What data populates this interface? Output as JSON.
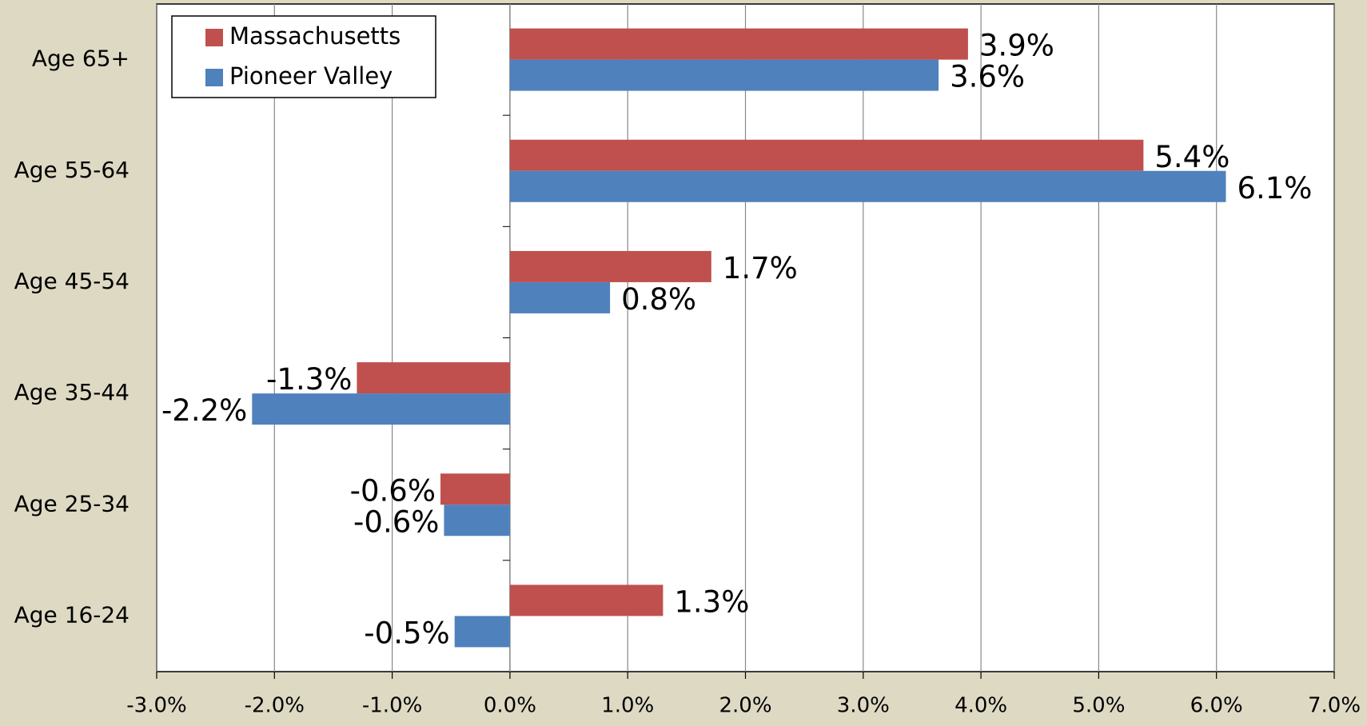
{
  "chart_data": {
    "type": "hbar",
    "categories": [
      "Age 65+",
      "Age 55-64",
      "Age 45-54",
      "Age 35-44",
      "Age 25-34",
      "Age 16-24"
    ],
    "series": [
      {
        "name": "Massachusetts",
        "color": "#c0504d",
        "values": [
          3.89,
          5.38,
          1.71,
          -1.3,
          -0.59,
          1.3
        ],
        "value_labels": [
          "3.9%",
          "5.4%",
          "1.7%",
          "-1.3%",
          "-0.6%",
          "1.3%"
        ]
      },
      {
        "name": "Pioneer Valley",
        "color": "#4f81bd",
        "values": [
          3.64,
          6.08,
          0.85,
          -2.19,
          -0.56,
          -0.47
        ],
        "value_labels": [
          "3.6%",
          "6.1%",
          "0.8%",
          "-2.2%",
          "-0.6%",
          "-0.5%"
        ]
      }
    ],
    "xlim": [
      -3,
      7
    ],
    "xticks": [
      {
        "value": -3,
        "label": "-3.0%"
      },
      {
        "value": -2,
        "label": "-2.0%"
      },
      {
        "value": -1,
        "label": "-1.0%"
      },
      {
        "value": 0,
        "label": "0.0%"
      },
      {
        "value": 1,
        "label": "1.0%"
      },
      {
        "value": 2,
        "label": "2.0%"
      },
      {
        "value": 3,
        "label": "3.0%"
      },
      {
        "value": 4,
        "label": "4.0%"
      },
      {
        "value": 5,
        "label": "5.0%"
      },
      {
        "value": 6,
        "label": "6.0%"
      },
      {
        "value": 7,
        "label": "7.0%"
      }
    ],
    "grid": true,
    "legend": "top-left"
  }
}
